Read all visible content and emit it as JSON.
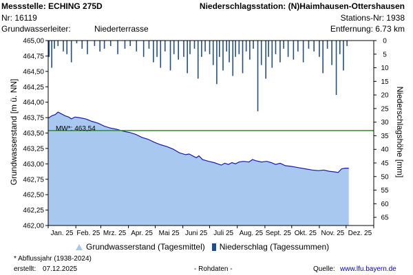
{
  "header": {
    "station_label": "Messstelle: ECHING 275D",
    "station_nr": "Nr: 16119",
    "aquifer_label": "Grundwasserleiter:",
    "aquifer_value": "Niederterrasse",
    "precip_station": "Niederschlagsstation: (N)Haimhausen-Ottershausen",
    "precip_station_nr": "Stations-Nr: 1938",
    "distance": "Entfernung: 6.73 km"
  },
  "chart_data": {
    "type": "area",
    "ylabel": "Grundwasserstand [m ü. NN]",
    "y2label": "Niederschlagshöhe [mm]",
    "ylim": [
      462.0,
      465.0
    ],
    "y_ticks": [
      "462,00",
      "462,25",
      "462,50",
      "462,75",
      "463,00",
      "463,25",
      "463,50",
      "463,75",
      "464,00",
      "464,25",
      "464,50",
      "464,75",
      "465,00"
    ],
    "y2lim": [
      0,
      68
    ],
    "y2_ticks": [
      "0",
      "5",
      "10",
      "15",
      "20",
      "25",
      "30",
      "35",
      "40",
      "45",
      "50",
      "55",
      "60",
      "65"
    ],
    "x_ticks": [
      "Jan. 25",
      "Feb. 25",
      "Mrz. 25",
      "Apr. 25",
      "Mai 25",
      "Juni 25",
      "Juli 25",
      "Aug. 25",
      "Sept. 25",
      "Okt. 25",
      "Nov. 25",
      "Dez. 25"
    ],
    "mean_line": {
      "label": "MW*: 463,54",
      "value": 463.54,
      "color": "#2e8b2e"
    },
    "series": [
      {
        "name": "Grundwasserstand (Tagesmittel)",
        "color": "#a8c8f0",
        "line_color": "#1a1aa0",
        "points": [
          [
            "2025-01-01",
            463.74
          ],
          [
            "2025-01-05",
            463.78
          ],
          [
            "2025-01-09",
            463.8
          ],
          [
            "2025-01-12",
            463.84
          ],
          [
            "2025-01-16",
            463.81
          ],
          [
            "2025-01-20",
            463.78
          ],
          [
            "2025-01-24",
            463.76
          ],
          [
            "2025-01-27",
            463.73
          ],
          [
            "2025-01-31",
            463.76
          ],
          [
            "2025-02-05",
            463.75
          ],
          [
            "2025-02-12",
            463.73
          ],
          [
            "2025-02-19",
            463.69
          ],
          [
            "2025-02-26",
            463.66
          ],
          [
            "2025-03-05",
            463.61
          ],
          [
            "2025-03-12",
            463.58
          ],
          [
            "2025-03-19",
            463.56
          ],
          [
            "2025-03-26",
            463.53
          ],
          [
            "2025-04-02",
            463.51
          ],
          [
            "2025-04-09",
            463.48
          ],
          [
            "2025-04-16",
            463.43
          ],
          [
            "2025-04-23",
            463.4
          ],
          [
            "2025-04-30",
            463.35
          ],
          [
            "2025-05-07",
            463.31
          ],
          [
            "2025-05-14",
            463.28
          ],
          [
            "2025-05-21",
            463.24
          ],
          [
            "2025-05-28",
            463.18
          ],
          [
            "2025-06-04",
            463.15
          ],
          [
            "2025-06-08",
            463.16
          ],
          [
            "2025-06-12",
            463.13
          ],
          [
            "2025-06-16",
            463.1
          ],
          [
            "2025-06-19",
            463.13
          ],
          [
            "2025-06-23",
            463.07
          ],
          [
            "2025-06-30",
            463.04
          ],
          [
            "2025-07-06",
            463.02
          ],
          [
            "2025-07-10",
            463.0
          ],
          [
            "2025-07-14",
            462.98
          ],
          [
            "2025-07-18",
            463.01
          ],
          [
            "2025-07-22",
            462.99
          ],
          [
            "2025-07-26",
            463.02
          ],
          [
            "2025-07-30",
            463.0
          ],
          [
            "2025-08-03",
            463.03
          ],
          [
            "2025-08-08",
            463.04
          ],
          [
            "2025-08-14",
            463.03
          ],
          [
            "2025-08-18",
            463.07
          ],
          [
            "2025-08-22",
            463.05
          ],
          [
            "2025-08-28",
            463.03
          ],
          [
            "2025-09-03",
            463.04
          ],
          [
            "2025-09-08",
            463.02
          ],
          [
            "2025-09-13",
            462.99
          ],
          [
            "2025-09-18",
            463.01
          ],
          [
            "2025-09-24",
            462.97
          ],
          [
            "2025-09-30",
            462.96
          ],
          [
            "2025-10-08",
            462.94
          ],
          [
            "2025-10-16",
            462.92
          ],
          [
            "2025-10-24",
            462.9
          ],
          [
            "2025-10-31",
            462.89
          ],
          [
            "2025-11-06",
            462.9
          ],
          [
            "2025-11-12",
            462.88
          ],
          [
            "2025-11-18",
            462.87
          ],
          [
            "2025-11-22",
            462.86
          ],
          [
            "2025-11-26",
            462.92
          ],
          [
            "2025-11-30",
            462.93
          ],
          [
            "2025-12-04",
            462.93
          ]
        ]
      },
      {
        "name": "Niederschlag (Tagessummen)",
        "color": "#1f4e8c",
        "points": [
          [
            "2025-01-02",
            6
          ],
          [
            "2025-01-05",
            10
          ],
          [
            "2025-01-08",
            3
          ],
          [
            "2025-01-12",
            2
          ],
          [
            "2025-01-18",
            4
          ],
          [
            "2025-01-22",
            5
          ],
          [
            "2025-01-27",
            8
          ],
          [
            "2025-02-02",
            1
          ],
          [
            "2025-02-08",
            3
          ],
          [
            "2025-02-14",
            5
          ],
          [
            "2025-02-22",
            2
          ],
          [
            "2025-02-28",
            4
          ],
          [
            "2025-03-05",
            3
          ],
          [
            "2025-03-12",
            2
          ],
          [
            "2025-03-20",
            5
          ],
          [
            "2025-03-28",
            3
          ],
          [
            "2025-04-03",
            2
          ],
          [
            "2025-04-10",
            4
          ],
          [
            "2025-04-18",
            6
          ],
          [
            "2025-04-24",
            3
          ],
          [
            "2025-04-29",
            8
          ],
          [
            "2025-05-03",
            6
          ],
          [
            "2025-05-07",
            10
          ],
          [
            "2025-05-12",
            4
          ],
          [
            "2025-05-18",
            11
          ],
          [
            "2025-05-22",
            5
          ],
          [
            "2025-05-27",
            7
          ],
          [
            "2025-06-02",
            6
          ],
          [
            "2025-06-06",
            12
          ],
          [
            "2025-06-09",
            5
          ],
          [
            "2025-06-14",
            3
          ],
          [
            "2025-06-18",
            14
          ],
          [
            "2025-06-22",
            6
          ],
          [
            "2025-06-26",
            4
          ],
          [
            "2025-07-01",
            5
          ],
          [
            "2025-07-05",
            9
          ],
          [
            "2025-07-09",
            16
          ],
          [
            "2025-07-12",
            6
          ],
          [
            "2025-07-16",
            11
          ],
          [
            "2025-07-20",
            4
          ],
          [
            "2025-07-23",
            8
          ],
          [
            "2025-07-27",
            13
          ],
          [
            "2025-07-30",
            6
          ],
          [
            "2025-08-03",
            5
          ],
          [
            "2025-08-07",
            12
          ],
          [
            "2025-08-11",
            4
          ],
          [
            "2025-08-15",
            7
          ],
          [
            "2025-08-19",
            3
          ],
          [
            "2025-08-24",
            26
          ],
          [
            "2025-08-28",
            9
          ],
          [
            "2025-09-02",
            14
          ],
          [
            "2025-09-05",
            6
          ],
          [
            "2025-09-09",
            10
          ],
          [
            "2025-09-13",
            5
          ],
          [
            "2025-09-18",
            8
          ],
          [
            "2025-09-22",
            3
          ],
          [
            "2025-09-27",
            6
          ],
          [
            "2025-10-03",
            7
          ],
          [
            "2025-10-08",
            4
          ],
          [
            "2025-10-14",
            8
          ],
          [
            "2025-10-20",
            3
          ],
          [
            "2025-10-26",
            4
          ],
          [
            "2025-11-01",
            6
          ],
          [
            "2025-11-05",
            12
          ],
          [
            "2025-11-10",
            3
          ],
          [
            "2025-11-15",
            9
          ],
          [
            "2025-11-20",
            20
          ],
          [
            "2025-11-24",
            5
          ],
          [
            "2025-11-28",
            11
          ],
          [
            "2025-12-02",
            2
          ]
        ]
      }
    ],
    "legend": [
      "Grundwasserstand (Tagesmittel)",
      "Niederschlag (Tagessummen)"
    ]
  },
  "footer": {
    "footnote": "* Abflussjahr (1938-2024)",
    "created_label": "erstellt:",
    "created_date": "07.12.2025",
    "raw_data": "- Rohdaten -",
    "source_label": "Quelle:",
    "source_url": "www.lfu.bayern.de"
  }
}
